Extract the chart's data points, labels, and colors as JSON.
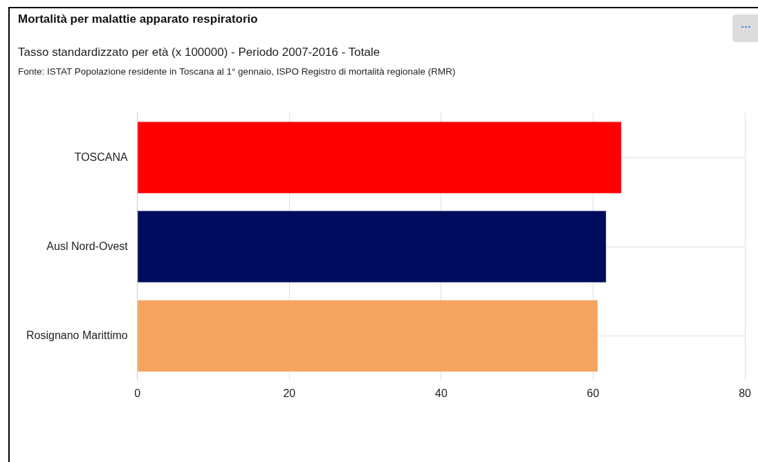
{
  "chart_data": {
    "type": "bar",
    "orientation": "horizontal",
    "title": "Mortalità per malattie apparato respiratorio",
    "subtitle": "Tasso standardizzato per età (x 100000) - Periodo 2007-2016 - Totale",
    "annotations": [
      "Fonte: ISTAT Popolazione residente in Toscana al 1° gennaio, ISPO Registro di mortalità regionale (RMR)"
    ],
    "categories": [
      "TOSCANA",
      "Ausl Nord-Ovest",
      "Rosignano Marittimo"
    ],
    "values": [
      63.7,
      61.7,
      60.6
    ],
    "colors": [
      "#ff0000",
      "#000c5e",
      "#f4a460"
    ],
    "xlim": [
      0,
      80
    ],
    "xticks": [
      0,
      20,
      40,
      60,
      80
    ],
    "grid": true,
    "legend": false
  }
}
